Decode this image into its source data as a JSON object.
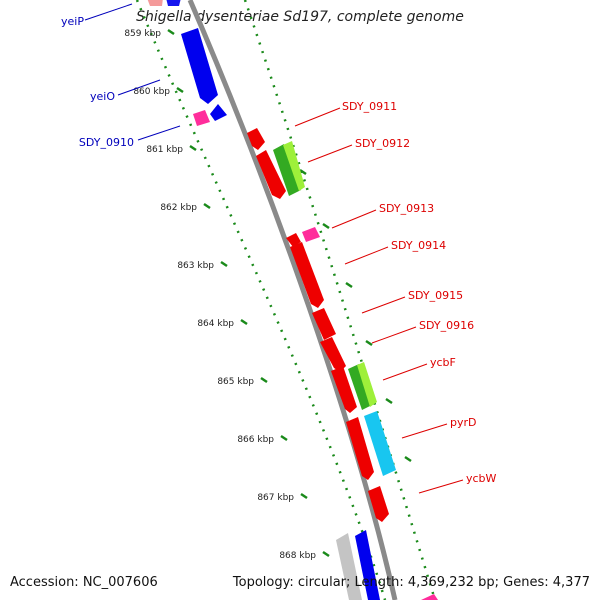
{
  "title": "Shigella dysenteriae Sd197, complete genome",
  "accession": "Accession: NC_007606",
  "summary": "Topology: circular; Length: 4,369,232 bp; Genes: 4,377",
  "colors": {
    "backbone": "#8a8a8a",
    "tick": "#1a8a1a",
    "forward_label": "#0000bb",
    "reverse_label": "#dd0000",
    "cds_reverse": "#ee0000",
    "cds_forward": "#0000ee",
    "rna": "#ff2d9b",
    "green_gene": "#33aa22",
    "lime_gene": "#9ef03a",
    "cyan_gene": "#18c6f0",
    "gray_gene": "#c4c4c4",
    "salmon_gene": "#f49a9a"
  },
  "scale_labels": [
    "859 kbp",
    "860 kbp",
    "861 kbp",
    "862 kbp",
    "863 kbp",
    "864 kbp",
    "865 kbp",
    "866 kbp",
    "867 kbp",
    "868 kbp"
  ],
  "genes_forward": [
    {
      "label": "yeiP",
      "color": "blue"
    },
    {
      "label": "yeiO",
      "color": "blue"
    },
    {
      "label": "SDY_0910",
      "color": "blue"
    }
  ],
  "genes_reverse": [
    {
      "label": "SDY_0911",
      "color": "red"
    },
    {
      "label": "SDY_0912",
      "color": "red"
    },
    {
      "label": "SDY_0913",
      "color": "red"
    },
    {
      "label": "SDY_0914",
      "color": "red"
    },
    {
      "label": "SDY_0915",
      "color": "red"
    },
    {
      "label": "SDY_0916",
      "color": "red"
    },
    {
      "label": "ycbF",
      "color": "red"
    },
    {
      "label": "pyrD",
      "color": "red"
    },
    {
      "label": "ycbW",
      "color": "red"
    }
  ]
}
